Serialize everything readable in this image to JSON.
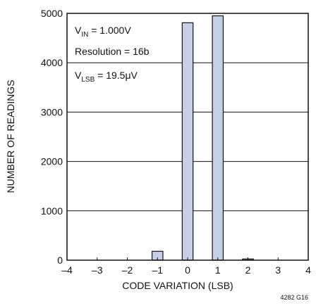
{
  "chart_data": {
    "type": "bar",
    "title": "",
    "xlabel": "CODE VARIATION (LSB)",
    "ylabel": "NUMBER OF READINGS",
    "xlim": [
      -4,
      4
    ],
    "ylim": [
      0,
      5000
    ],
    "x_ticks": [
      "–4",
      "–3",
      "–2",
      "–1",
      "0",
      "1",
      "2",
      "3",
      "4"
    ],
    "y_ticks": [
      "0",
      "1000",
      "2000",
      "3000",
      "4000",
      "5000"
    ],
    "grid": true,
    "bars": [
      {
        "x": -1,
        "value": 180
      },
      {
        "x": 0,
        "value": 4810
      },
      {
        "x": 1,
        "value": 4950
      },
      {
        "x": 2,
        "value": 25
      }
    ],
    "bar_color": "#c5d0e6",
    "annotations": {
      "vin": {
        "main": "V",
        "sub": "IN",
        "rest": " = 1.000V"
      },
      "resolution": "Resolution = 16b",
      "vlsb": {
        "main": "V",
        "sub": "LSB",
        "rest": " = 19.5μV"
      }
    },
    "figure_code": "4282 G16"
  }
}
